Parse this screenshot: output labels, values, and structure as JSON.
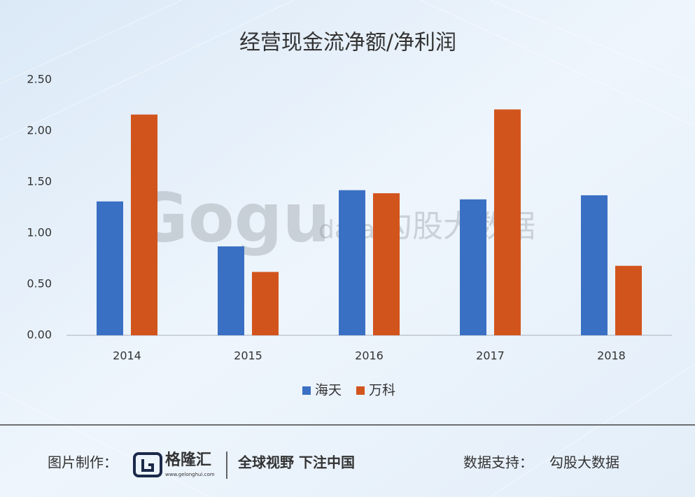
{
  "chart_data": {
    "type": "bar",
    "title": "经营现金流净额/净利润",
    "categories": [
      "2014",
      "2015",
      "2016",
      "2017",
      "2018"
    ],
    "series": [
      {
        "name": "海天",
        "color": "#3a70c3",
        "values": [
          1.31,
          0.87,
          1.42,
          1.33,
          1.37
        ]
      },
      {
        "name": "万科",
        "color": "#d2541d",
        "values": [
          2.16,
          0.62,
          1.39,
          2.21,
          0.68
        ]
      }
    ],
    "ylim": [
      0,
      2.5
    ],
    "yticks": [
      {
        "value": 0,
        "label": "0.00"
      },
      {
        "value": 0.5,
        "label": "0.50"
      },
      {
        "value": 1,
        "label": "1.00"
      },
      {
        "value": 1.5,
        "label": "1.50"
      },
      {
        "value": 2,
        "label": "2.00"
      },
      {
        "value": 2.5,
        "label": "2.50"
      }
    ],
    "grid": false,
    "legend": "bottom"
  },
  "watermark": {
    "brand": "Gogu",
    "sub": "data",
    "name": "勾股大数据"
  },
  "footer": {
    "made_by_label": "图片制作：",
    "logo_name": "格隆汇",
    "logo_url": "www.gelonghui.com",
    "slogan": "全球视野 下注中国",
    "source_label": "数据支持：",
    "source": "勾股大数据"
  }
}
